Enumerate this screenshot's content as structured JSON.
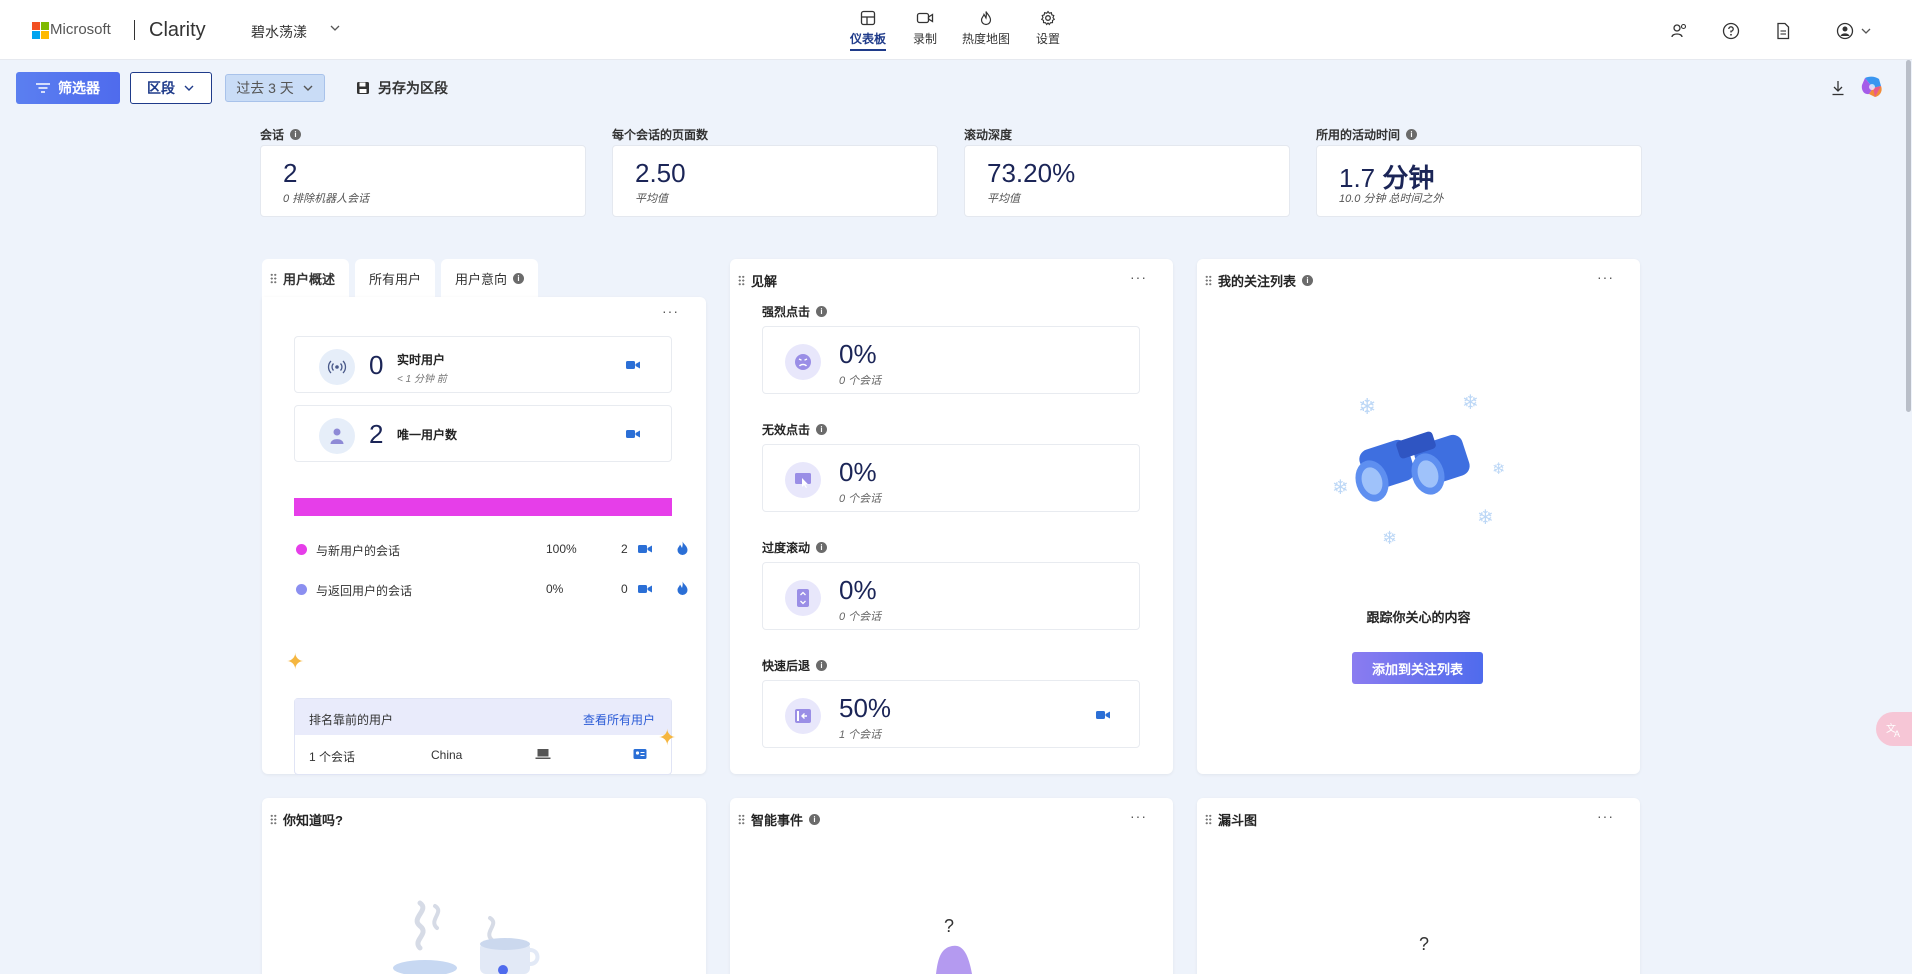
{
  "header": {
    "ms_text": "Microsoft",
    "brand": "Clarity",
    "project": "碧水荡漾",
    "nav": [
      {
        "label": "仪表板",
        "icon": "dashboard-icon",
        "active": true
      },
      {
        "label": "录制",
        "icon": "video-icon",
        "active": false
      },
      {
        "label": "热度地图",
        "icon": "flame-icon",
        "active": false
      },
      {
        "label": "设置",
        "icon": "gear-icon",
        "active": false
      }
    ]
  },
  "toolbar": {
    "filter_label": "筛选器",
    "segment_label": "区段",
    "range_label": "过去 3 天",
    "save_label": "另存为区段"
  },
  "kpis": [
    {
      "label": "会话",
      "value": "2",
      "unit": "",
      "sub": "0 排除机器人会话"
    },
    {
      "label": "每个会话的页面数",
      "value": "2.50",
      "unit": "",
      "sub": "平均值"
    },
    {
      "label": "滚动深度",
      "value": "73.20%",
      "unit": "",
      "sub": "平均值"
    },
    {
      "label": "所用的活动时间",
      "value": "1.7",
      "unit": "分钟",
      "sub": "10.0 分钟 总时间之外"
    }
  ],
  "user_panel": {
    "tabs": [
      "用户概述",
      "所有用户",
      "用户意向"
    ],
    "live": {
      "value": "0",
      "label": "实时用户",
      "sub": "< 1 分钟 前"
    },
    "unique": {
      "value": "2",
      "label": "唯一用户数"
    },
    "bar_new_fraction": 1.0,
    "legend": [
      {
        "label": "与新用户的会话",
        "pct": "100%",
        "count": "2",
        "color": "#e63ee9"
      },
      {
        "label": "与返回用户的会话",
        "pct": "0%",
        "count": "0",
        "color": "#8b8ff0"
      }
    ],
    "top_users": {
      "title": "排名靠前的用户",
      "link": "查看所有用户",
      "row": {
        "sessions": "1 个会话",
        "country": "China"
      }
    }
  },
  "insights": {
    "title": "见解",
    "items": [
      {
        "label": "强烈点击",
        "value": "0%",
        "sub": "0 个会话",
        "icon": "angry-face-icon"
      },
      {
        "label": "无效点击",
        "value": "0%",
        "sub": "0 个会话",
        "icon": "dead-click-icon"
      },
      {
        "label": "过度滚动",
        "value": "0%",
        "sub": "0 个会话",
        "icon": "scroll-icon"
      },
      {
        "label": "快速后退",
        "value": "50%",
        "sub": "1 个会话",
        "icon": "quick-back-icon"
      }
    ]
  },
  "watchlist": {
    "title": "我的关注列表",
    "caption": "跟踪你关心的内容",
    "button": "添加到关注列表"
  },
  "bottom_panels": {
    "did_you_know": "你知道吗?",
    "smart_events": "智能事件",
    "funnels": "漏斗图"
  }
}
